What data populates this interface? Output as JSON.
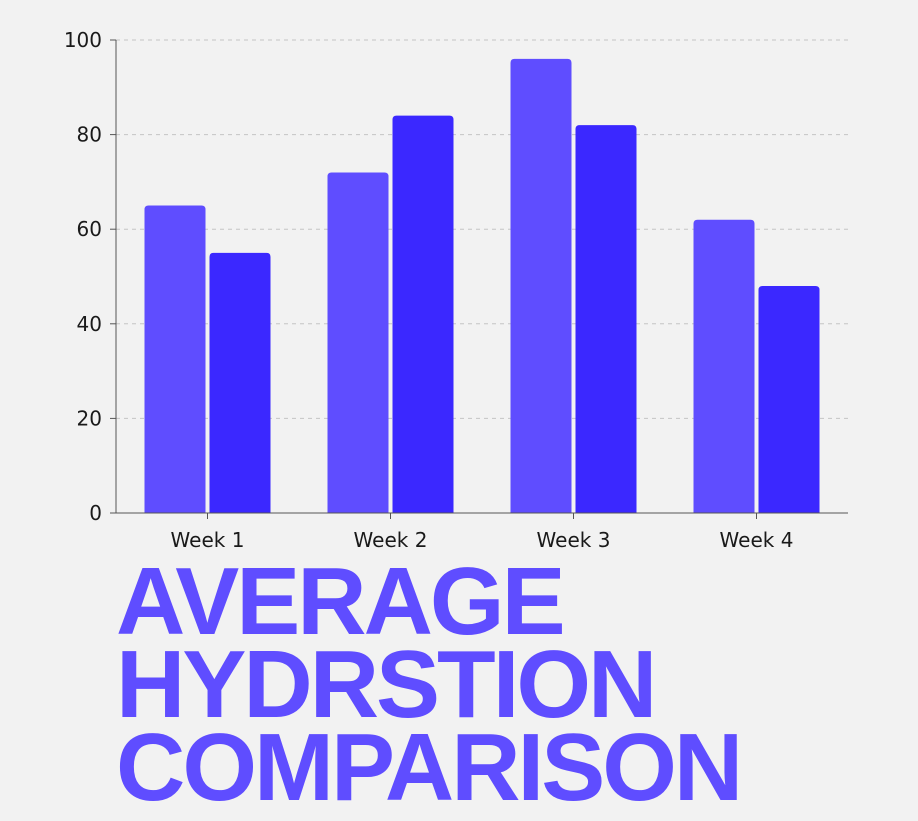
{
  "chart_data": {
    "type": "bar",
    "categories": [
      "Week 1",
      "Week 2",
      "Week 3",
      "Week 4"
    ],
    "series": [
      {
        "values": [
          65,
          72,
          96,
          62
        ],
        "color": "#5f4dff"
      },
      {
        "values": [
          55,
          84,
          82,
          48
        ],
        "color": "#3b28ff"
      }
    ],
    "ylim": [
      0,
      100
    ],
    "yticks": [
      0,
      20,
      40,
      60,
      80,
      100
    ],
    "grid": true,
    "legend": "none",
    "title_lines": [
      "AVERAGE",
      "HYDRSTION",
      "COMPARISON"
    ],
    "title_color": "#5f4dff"
  }
}
